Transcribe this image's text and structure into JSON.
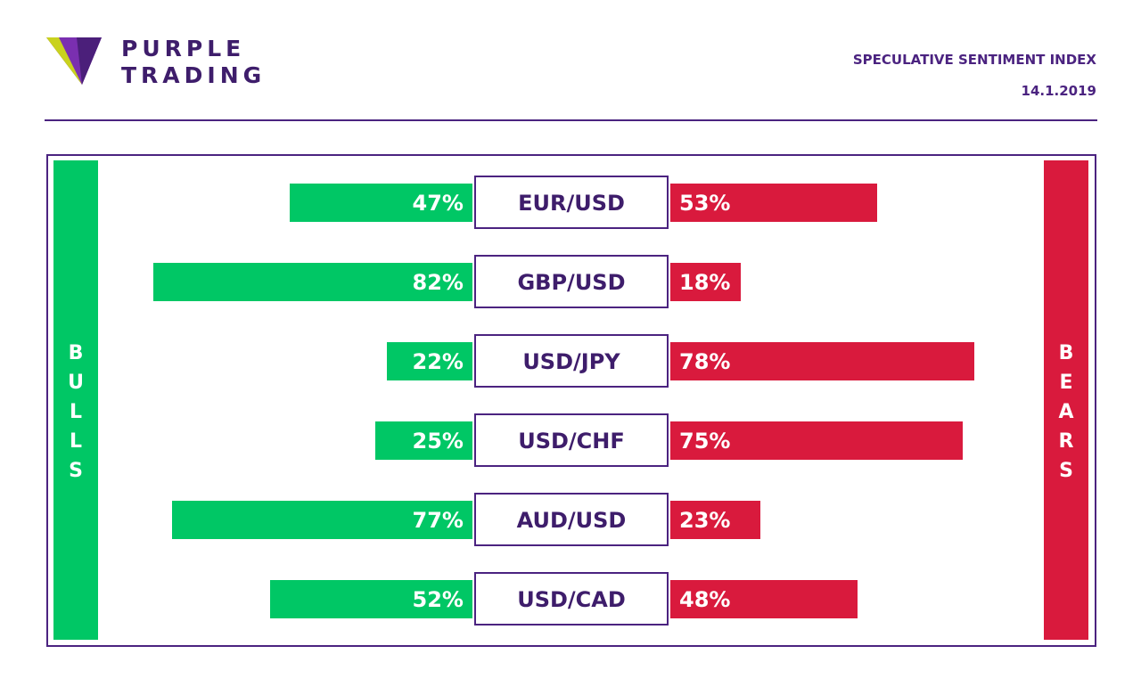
{
  "brand": {
    "line1": "PURPLE",
    "line2": "TRADING"
  },
  "header": {
    "title": "SPECULATIVE SENTIMENT INDEX",
    "date": "14.1.2019"
  },
  "colors": {
    "bulls": "#00c765",
    "bears": "#d91a3d",
    "accent": "#4b2380"
  },
  "chart_data": {
    "type": "bar",
    "left_label": "BULLS",
    "right_label": "BEARS",
    "categories": [
      "EUR/USD",
      "GBP/USD",
      "USD/JPY",
      "USD/CHF",
      "AUD/USD",
      "USD/CAD"
    ],
    "series": [
      {
        "name": "BULLS",
        "values": [
          47,
          82,
          22,
          25,
          77,
          52
        ],
        "labels": [
          "47%",
          "82%",
          "22%",
          "25%",
          "77%",
          "52%"
        ]
      },
      {
        "name": "BEARS",
        "values": [
          53,
          18,
          78,
          75,
          23,
          48
        ],
        "labels": [
          "53%",
          "18%",
          "78%",
          "75%",
          "23%",
          "48%"
        ]
      }
    ],
    "ylim": [
      0,
      100
    ]
  }
}
